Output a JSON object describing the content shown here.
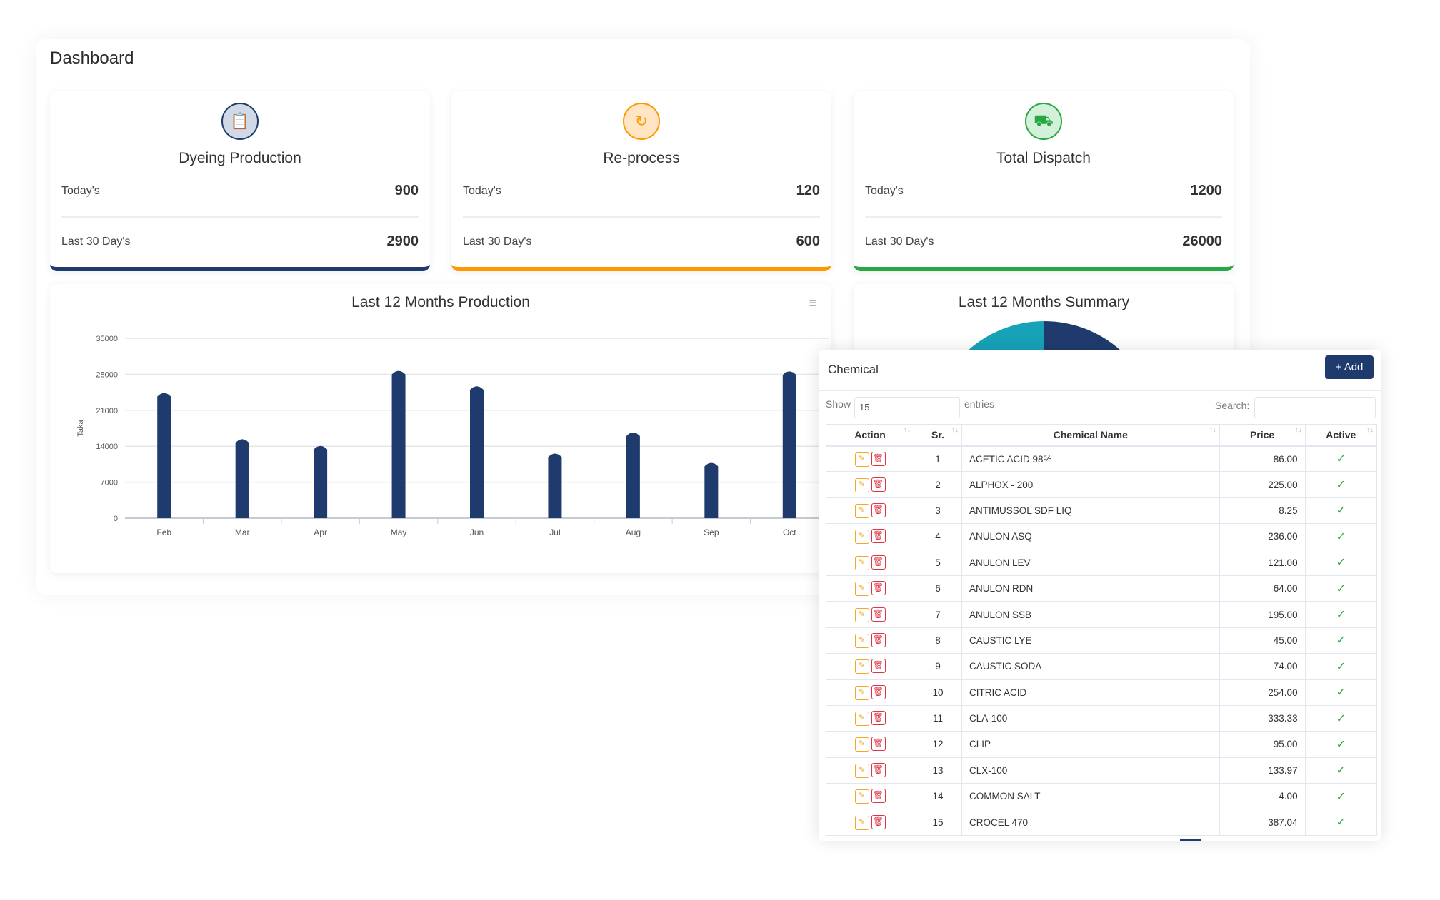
{
  "page_title": "Dashboard",
  "stats": [
    {
      "title": "Dyeing Production",
      "icon": "clipboard-check-icon",
      "today_label": "Today's",
      "today": "900",
      "last30_label": "Last 30 Day's",
      "last30": "2900",
      "color": "#1f3b6e",
      "bg": "#d2d9e6"
    },
    {
      "title": "Re-process",
      "icon": "refresh-icon",
      "today_label": "Today's",
      "today": "120",
      "last30_label": "Last 30 Day's",
      "last30": "600",
      "color": "#ff9800",
      "bg": "#ffe5c4"
    },
    {
      "title": "Total Dispatch",
      "icon": "truck-icon",
      "today_label": "Today's",
      "today": "1200",
      "last30_label": "Last 30 Day's",
      "last30": "26000",
      "color": "#28a745",
      "bg": "#d3f0d9"
    }
  ],
  "chart_data": {
    "type": "bar",
    "title": "Last 12 Months Production",
    "ylabel": "Taka",
    "xlabel": "",
    "categories": [
      "Feb",
      "Mar",
      "Apr",
      "May",
      "Jun",
      "Jul",
      "Aug",
      "Sep",
      "Oct"
    ],
    "values": [
      24500,
      15500,
      14200,
      28800,
      25800,
      12700,
      16800,
      10900,
      28700
    ],
    "ylim": [
      0,
      35000
    ],
    "yticks": [
      "0",
      "7000",
      "14000",
      "21000",
      "28000",
      "35000"
    ],
    "grid": true,
    "color": "#1f3b6e"
  },
  "summary": {
    "title": "Last 12 Months Summary",
    "colors": [
      "#17a2b8",
      "#1f3b6e"
    ]
  },
  "table": {
    "title": "Chemical",
    "add_label": "+ Add",
    "show_label": "Show",
    "show_value": "15",
    "entries_label": "entries",
    "search_label": "Search:",
    "search_value": "",
    "columns": [
      "Action",
      "Sr.",
      "Chemical Name",
      "Price",
      "Active"
    ],
    "rows": [
      [
        "1",
        "ACETIC ACID 98%",
        "86.00"
      ],
      [
        "2",
        "ALPHOX - 200",
        "225.00"
      ],
      [
        "3",
        "ANTIMUSSOL SDF LIQ",
        "8.25"
      ],
      [
        "4",
        "ANULON ASQ",
        "236.00"
      ],
      [
        "5",
        "ANULON LEV",
        "121.00"
      ],
      [
        "6",
        "ANULON RDN",
        "64.00"
      ],
      [
        "7",
        "ANULON SSB",
        "195.00"
      ],
      [
        "8",
        "CAUSTIC LYE",
        "45.00"
      ],
      [
        "9",
        "CAUSTIC SODA",
        "74.00"
      ],
      [
        "10",
        "CITRIC ACID",
        "254.00"
      ],
      [
        "11",
        "CLA-100",
        "333.33"
      ],
      [
        "12",
        "CLIP",
        "95.00"
      ],
      [
        "13",
        "CLX-100",
        "133.97"
      ],
      [
        "14",
        "COMMON SALT",
        "4.00"
      ],
      [
        "15",
        "CROCEL 470",
        "387.04"
      ]
    ],
    "active_mark": "✓"
  }
}
